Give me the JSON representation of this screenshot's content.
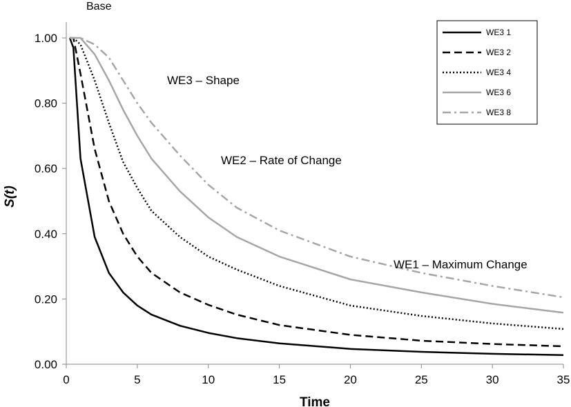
{
  "chart_data": {
    "type": "line",
    "title": "Base",
    "xlabel": "Time",
    "ylabel": "S(t)",
    "xlim": [
      0,
      35
    ],
    "ylim": [
      0,
      1.0
    ],
    "x_ticks": [
      "0",
      "5",
      "10",
      "15",
      "20",
      "25",
      "30",
      "35"
    ],
    "y_ticks": [
      "0.00",
      "0.20",
      "0.40",
      "0.60",
      "0.80",
      "1.00"
    ],
    "grid": false,
    "legend_position": "top-right",
    "annotations": [
      "WE3 – Shape",
      "WE2 – Rate of Change",
      "WE1 – Maximum Change"
    ],
    "x": [
      0.25,
      0.5,
      1,
      2,
      3,
      4,
      5,
      6,
      8,
      10,
      12,
      15,
      20,
      25,
      30,
      35
    ],
    "series": [
      {
        "name": "WE3 1",
        "color": "#000000",
        "dash": "solid",
        "values": [
          1.0,
          0.97,
          0.63,
          0.39,
          0.28,
          0.22,
          0.18,
          0.152,
          0.118,
          0.096,
          0.08,
          0.064,
          0.047,
          0.038,
          0.032,
          0.028
        ]
      },
      {
        "name": "WE3 2",
        "color": "#000000",
        "dash": "dashed",
        "values": [
          1.0,
          1.0,
          0.89,
          0.66,
          0.5,
          0.4,
          0.33,
          0.28,
          0.22,
          0.182,
          0.152,
          0.12,
          0.09,
          0.072,
          0.062,
          0.055
        ]
      },
      {
        "name": "WE3 4",
        "color": "#000000",
        "dash": "dotted",
        "values": [
          1.0,
          1.0,
          0.98,
          0.87,
          0.74,
          0.62,
          0.54,
          0.47,
          0.39,
          0.33,
          0.29,
          0.24,
          0.18,
          0.148,
          0.125,
          0.108
        ]
      },
      {
        "name": "WE3 6",
        "color": "#a6a6a6",
        "dash": "solid",
        "values": [
          1.0,
          1.0,
          1.0,
          0.95,
          0.87,
          0.78,
          0.7,
          0.63,
          0.53,
          0.45,
          0.39,
          0.33,
          0.26,
          0.22,
          0.185,
          0.158
        ]
      },
      {
        "name": "WE3 8",
        "color": "#a6a6a6",
        "dash": "dashdot",
        "values": [
          1.0,
          1.0,
          1.0,
          0.98,
          0.94,
          0.87,
          0.8,
          0.74,
          0.64,
          0.55,
          0.48,
          0.41,
          0.33,
          0.28,
          0.24,
          0.205
        ]
      }
    ]
  }
}
